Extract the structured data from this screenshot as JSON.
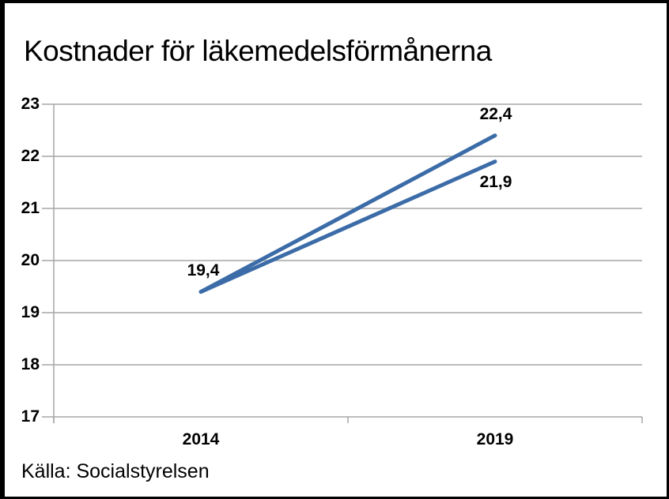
{
  "chart_data": {
    "type": "line",
    "title": "Kostnader för läkemedelsförmånerna",
    "source": "Källa: Socialstyrelsen",
    "categories": [
      "2014",
      "2019"
    ],
    "series": [
      {
        "values": [
          19.4,
          22.4
        ],
        "point_labels": [
          "19,4",
          "22,4"
        ]
      },
      {
        "values": [
          19.4,
          21.9
        ],
        "point_labels": [
          "",
          "21,9"
        ]
      }
    ],
    "ylim": [
      17,
      23
    ],
    "yticks": [
      17,
      18,
      19,
      20,
      21,
      22,
      23
    ],
    "grid": true,
    "legend": "none",
    "colors": {
      "line": "#3C6CA8",
      "grid": "#A6A6A6",
      "text": "#000000",
      "background": "#FFFFFF",
      "frame_border": "#000000"
    }
  }
}
